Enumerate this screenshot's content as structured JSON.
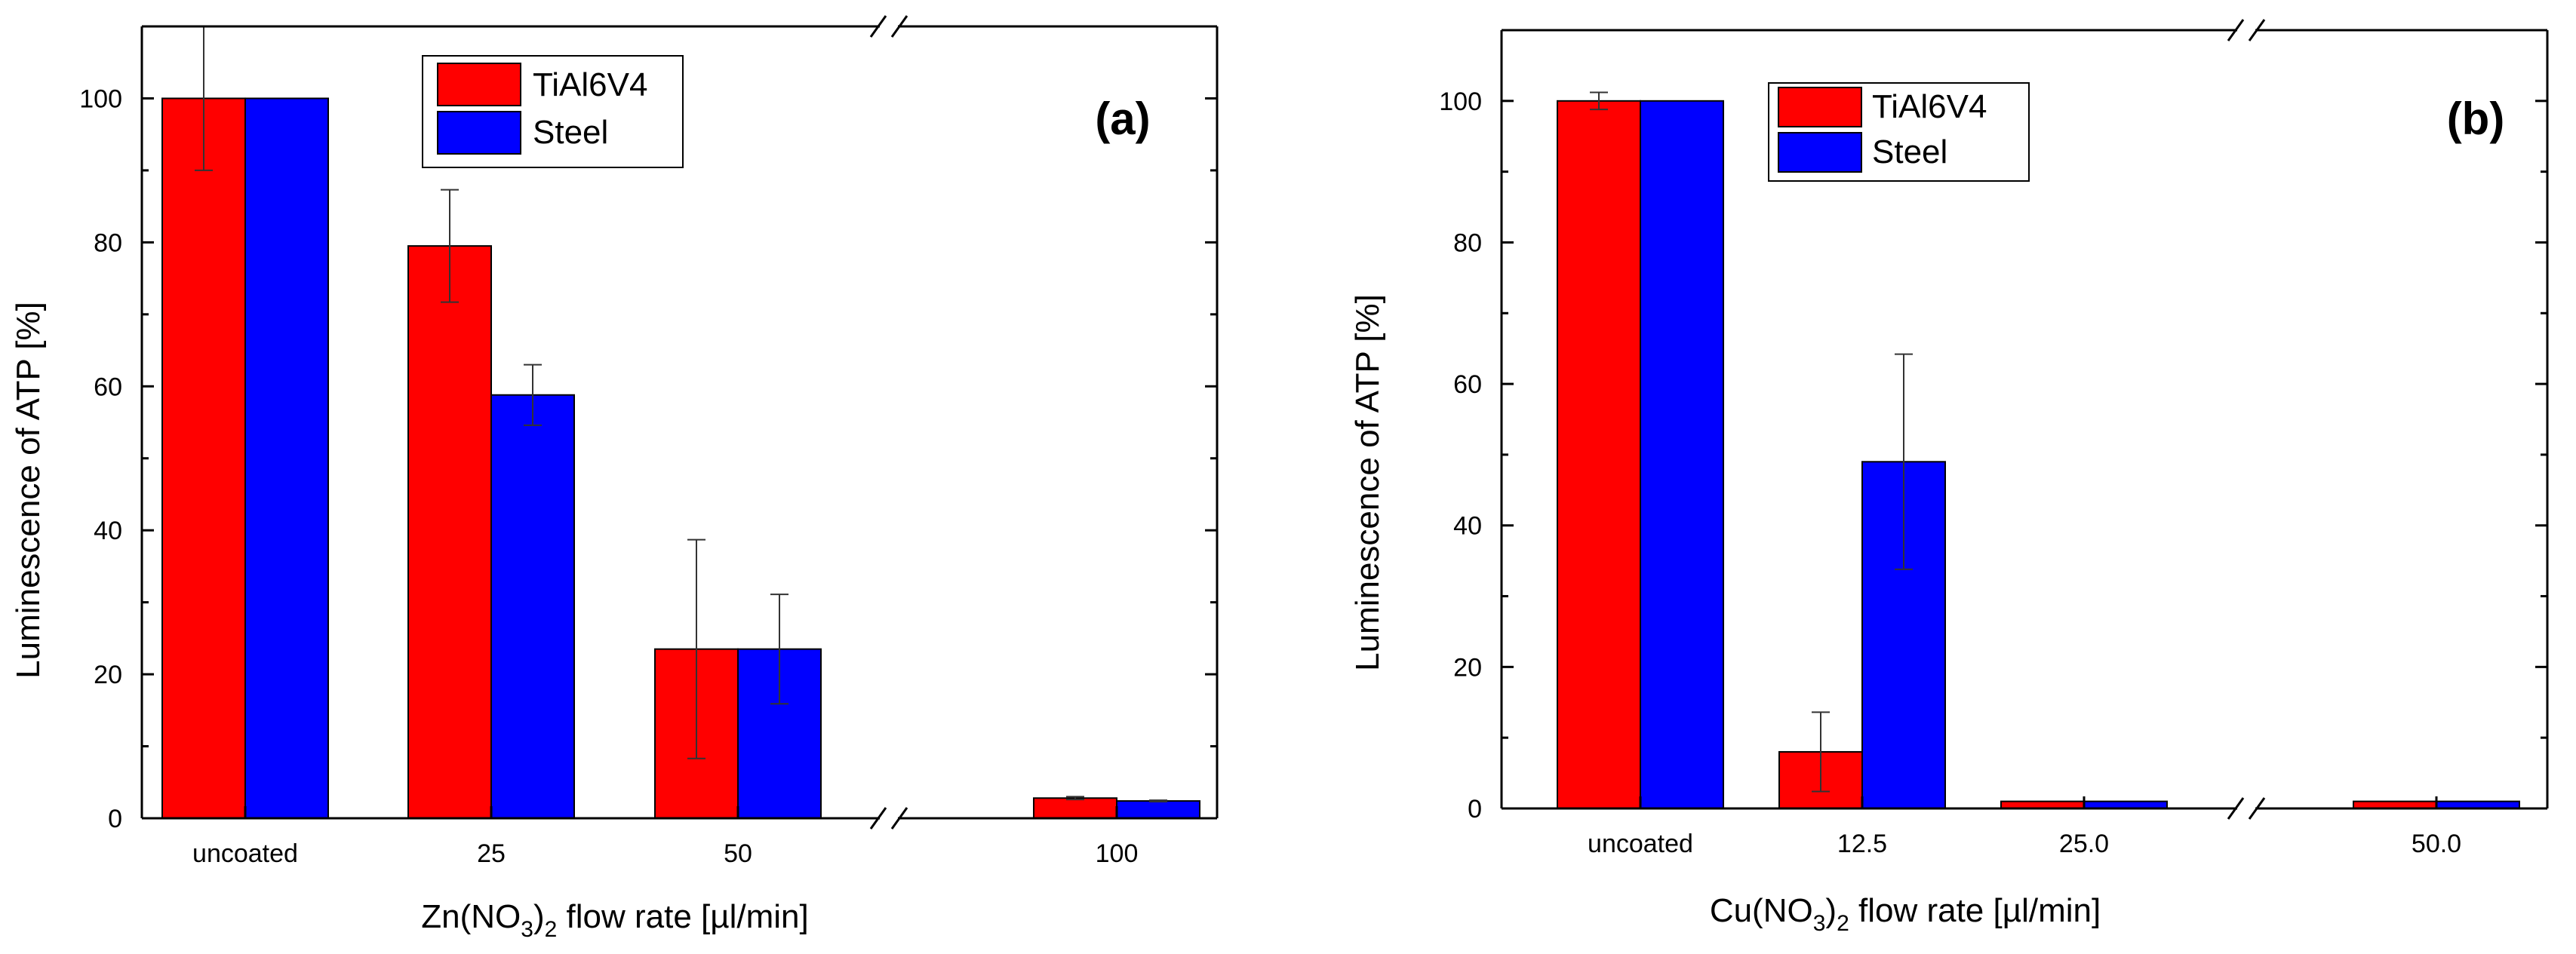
{
  "chart_data": [
    {
      "type": "bar",
      "panel_label": "(a)",
      "categories": [
        "uncoated",
        "25",
        "50",
        "100"
      ],
      "axis_break_after_category": 2,
      "series": [
        {
          "name": "TiAl6V4",
          "color": "#ff0000",
          "values": [
            100,
            79.5,
            23.5,
            2.8
          ],
          "errors": [
            10,
            7.8,
            15.2,
            0.2
          ]
        },
        {
          "name": "Steel",
          "color": "#0000ff",
          "values": [
            100,
            58.8,
            23.5,
            2.4
          ],
          "errors": [
            0,
            4.2,
            7.6,
            0.1
          ]
        }
      ],
      "xlabel": {
        "prefix": "Zn(NO",
        "sub1": "3",
        "mid": ")",
        "sub2": "2",
        "suffix": " flow rate [µl/min]"
      },
      "ylabel": "Luminescence of ATP [%]",
      "ylim": [
        0,
        110
      ],
      "yticks": [
        0,
        20,
        40,
        60,
        80,
        100
      ],
      "legend_position": "top-center"
    },
    {
      "type": "bar",
      "panel_label": "(b)",
      "categories": [
        "uncoated",
        "12.5",
        "25.0",
        "50.0"
      ],
      "axis_break_after_category": 2,
      "series": [
        {
          "name": "TiAl6V4",
          "color": "#ff0000",
          "values": [
            100,
            8,
            1,
            1
          ],
          "errors": [
            1.2,
            5.6,
            0,
            0
          ]
        },
        {
          "name": "Steel",
          "color": "#0000ff",
          "values": [
            100,
            49,
            1,
            1
          ],
          "errors": [
            0,
            15.2,
            0,
            0
          ]
        }
      ],
      "xlabel": {
        "prefix": "Cu(NO",
        "sub1": "3",
        "mid": ")",
        "sub2": "2",
        "suffix": " flow rate [µl/min]"
      },
      "ylabel": "Luminescence of ATP [%]",
      "ylim": [
        0,
        110
      ],
      "yticks": [
        0,
        20,
        40,
        60,
        80,
        100
      ],
      "legend_position": "top-center"
    }
  ]
}
